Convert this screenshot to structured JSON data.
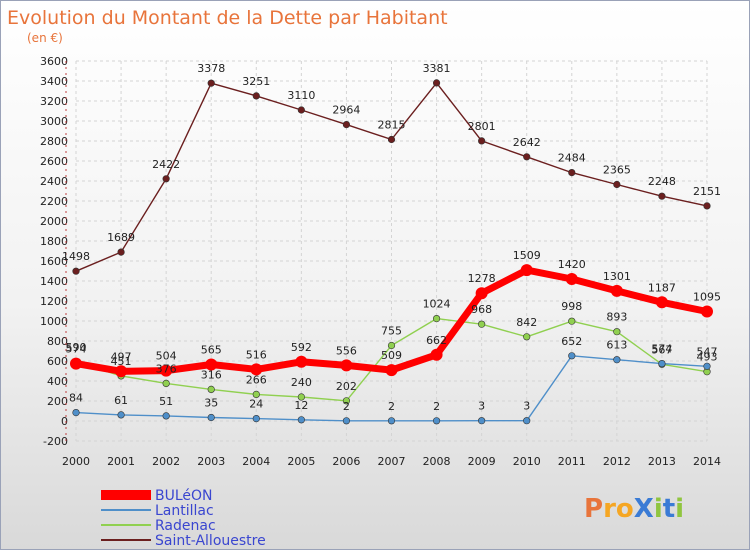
{
  "chart_data": {
    "type": "line",
    "title": "Evolution du Montant de la Dette par Habitant",
    "subtitle": "(en €)",
    "x": [
      "2000",
      "2001",
      "2002",
      "2003",
      "2004",
      "2005",
      "2006",
      "2007",
      "2008",
      "2009",
      "2010",
      "2011",
      "2012",
      "2013",
      "2014"
    ],
    "ylim": [
      -200,
      3600
    ],
    "yticks": [
      -200,
      0,
      200,
      400,
      600,
      800,
      1000,
      1200,
      1400,
      1600,
      1800,
      2000,
      2200,
      2400,
      2600,
      2800,
      3000,
      3200,
      3400,
      3600
    ],
    "grid": true,
    "legend_position": "bottom-left",
    "series": [
      {
        "name": "BULéON",
        "color": "#ff0000",
        "values": [
          574,
          497,
          504,
          565,
          516,
          592,
          556,
          509,
          662,
          1278,
          1509,
          1420,
          1301,
          1187,
          1095
        ]
      },
      {
        "name": "Lantillac",
        "color": "#4f8fc9",
        "values": [
          84,
          61,
          51,
          35,
          24,
          12,
          2,
          2,
          2,
          3,
          3,
          652,
          613,
          574,
          547
        ]
      },
      {
        "name": "Radenac",
        "color": "#90d050",
        "values": [
          590,
          451,
          376,
          316,
          266,
          240,
          202,
          755,
          1024,
          968,
          842,
          998,
          893,
          567,
          493
        ]
      },
      {
        "name": "Saint-Allouestre",
        "color": "#6b1f1f",
        "values": [
          1498,
          1689,
          2422,
          3378,
          3251,
          3110,
          2964,
          2815,
          3381,
          2801,
          2642,
          2484,
          2365,
          2248,
          2151
        ]
      }
    ]
  },
  "brand": {
    "text": "ProXiti"
  }
}
